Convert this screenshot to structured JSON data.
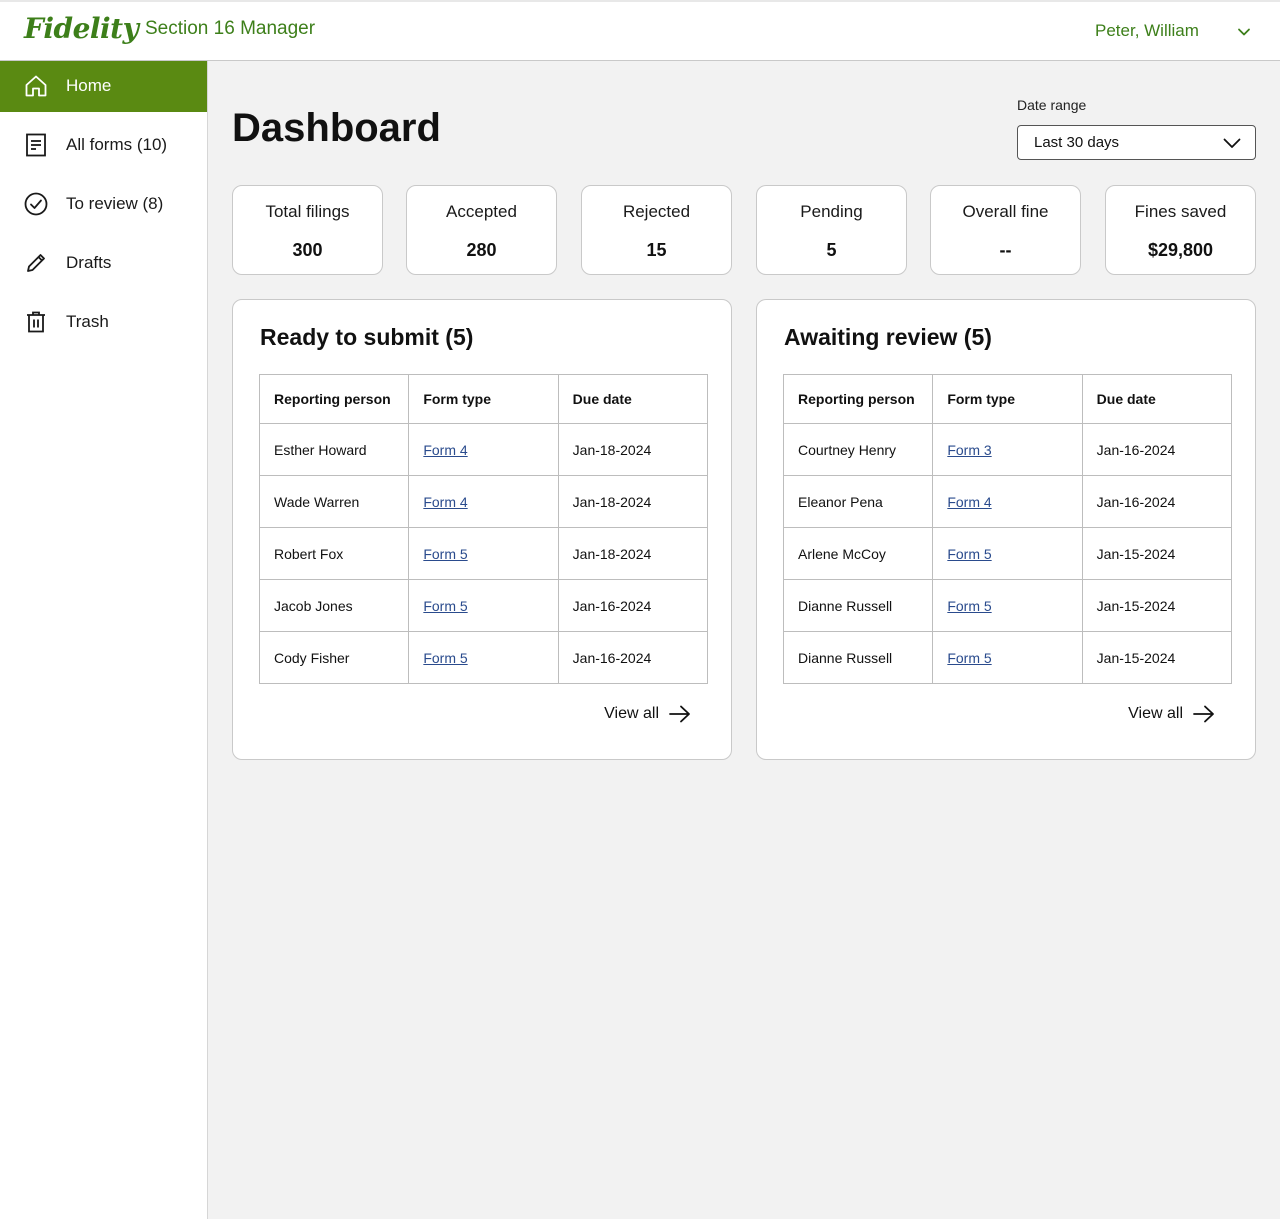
{
  "header": {
    "logo_text": "Fidelity",
    "app_title": "Section 16 Manager",
    "user_name": "Peter, William",
    "user_menu_icon": "chevron-down-icon",
    "brand_color": "#3d7f1a"
  },
  "sidebar": {
    "active_color": "#5a8a12",
    "items": [
      {
        "label": "Home",
        "icon": "home-icon",
        "active": true
      },
      {
        "label": "All forms (10)",
        "icon": "document-icon",
        "active": false
      },
      {
        "label": "To review (8)",
        "icon": "check-circle-icon",
        "active": false
      },
      {
        "label": "Drafts",
        "icon": "pencil-icon",
        "active": false
      },
      {
        "label": "Trash",
        "icon": "trash-icon",
        "active": false
      }
    ]
  },
  "main": {
    "title": "Dashboard",
    "date_range": {
      "label": "Date range",
      "selected": "Last 30 days"
    },
    "stats": [
      {
        "label": "Total filings",
        "value": "300"
      },
      {
        "label": "Accepted",
        "value": "280"
      },
      {
        "label": "Rejected",
        "value": "15"
      },
      {
        "label": "Pending",
        "value": "5"
      },
      {
        "label": "Overall fine",
        "value": "--"
      },
      {
        "label": "Fines saved",
        "value": "$29,800"
      }
    ],
    "panels": [
      {
        "title": "Ready to submit (5)",
        "columns": [
          "Reporting person",
          "Form type",
          "Due date"
        ],
        "rows": [
          [
            "Esther Howard",
            "Form 4",
            "Jan-18-2024"
          ],
          [
            "Wade Warren",
            "Form 4",
            "Jan-18-2024"
          ],
          [
            "Robert Fox",
            "Form 5",
            "Jan-18-2024"
          ],
          [
            "Jacob Jones",
            "Form 5",
            "Jan-16-2024"
          ],
          [
            "Cody Fisher",
            "Form 5",
            "Jan-16-2024"
          ]
        ],
        "view_all": "View all"
      },
      {
        "title": "Awaiting review (5)",
        "columns": [
          "Reporting person",
          "Form type",
          "Due date"
        ],
        "rows": [
          [
            "Courtney Henry",
            "Form 3",
            "Jan-16-2024"
          ],
          [
            "Eleanor Pena",
            "Form 4",
            "Jan-16-2024"
          ],
          [
            "Arlene McCoy",
            "Form 5",
            "Jan-15-2024"
          ],
          [
            "Dianne Russell",
            "Form 5",
            "Jan-15-2024"
          ],
          [
            "Dianne Russell",
            "Form 5",
            "Jan-15-2024"
          ]
        ],
        "view_all": "View all"
      }
    ]
  }
}
